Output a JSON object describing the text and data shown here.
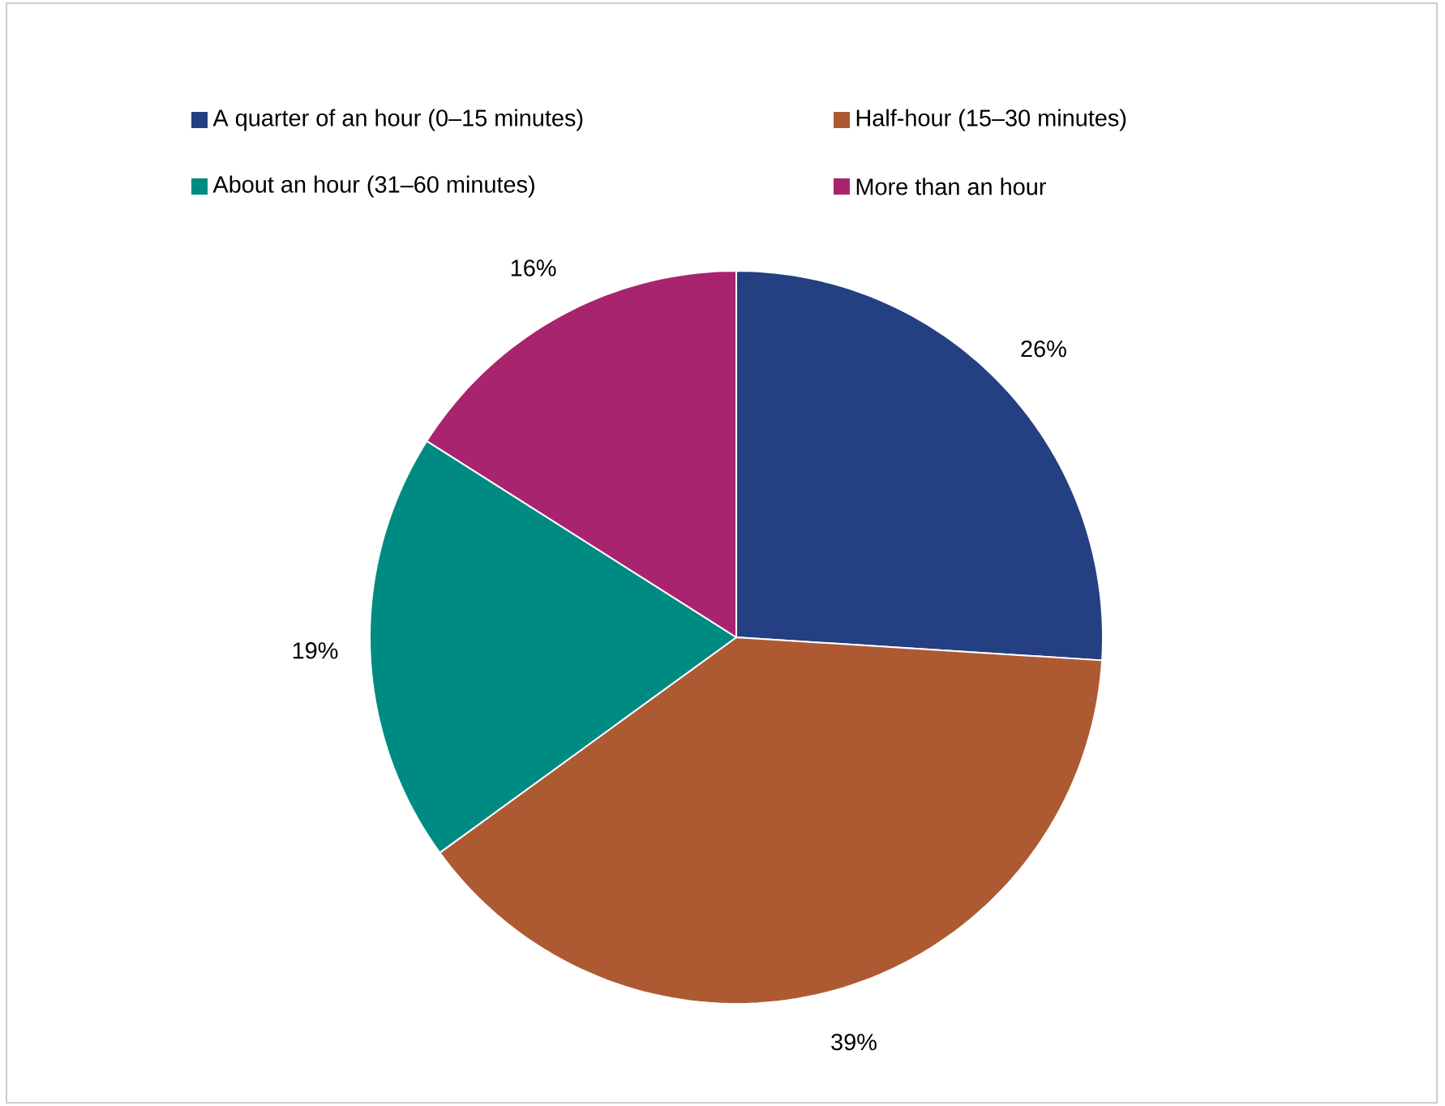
{
  "chart_data": {
    "type": "pie",
    "categories": [
      "A quarter of an hour (0–15 minutes)",
      "Half-hour (15–30 minutes)",
      "About an hour (31–60 minutes)",
      "More than an hour"
    ],
    "values": [
      26,
      39,
      19,
      16
    ],
    "colors": [
      "#243f82",
      "#ad5a33",
      "#008b82",
      "#a8246f"
    ],
    "value_labels": [
      "26%",
      "39%",
      "19%",
      "16%"
    ],
    "legend": "top"
  }
}
